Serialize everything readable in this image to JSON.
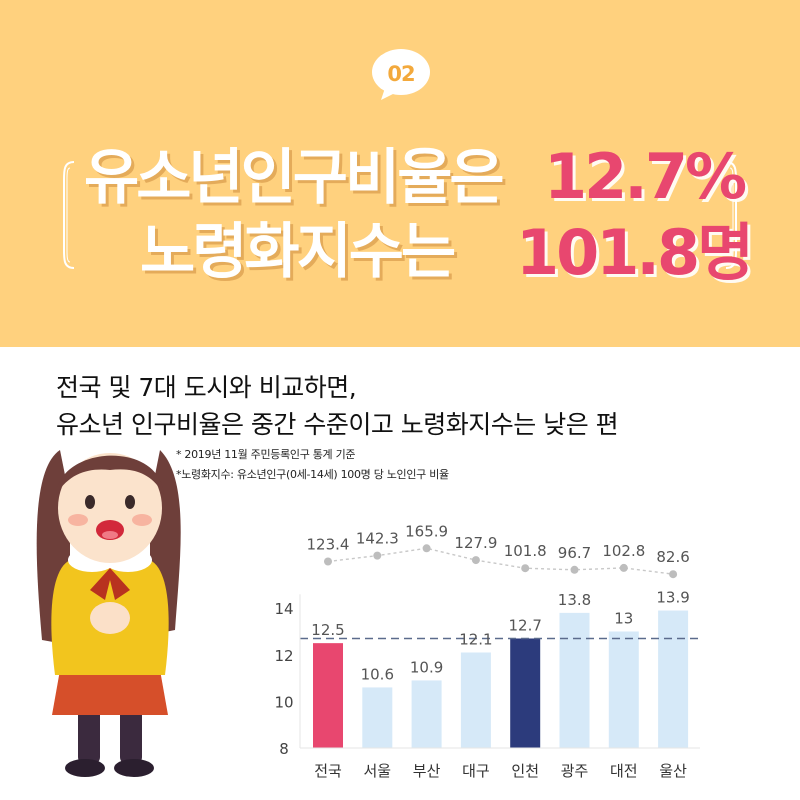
{
  "banner": {
    "badge": "02",
    "line1_text": "유소년인구비율은",
    "line1_value": "12.7%",
    "line2_text": "노령화지수는",
    "line2_value": "101.8명",
    "colors": {
      "background": "#ffd17e",
      "accent": "#e8476f",
      "badge": "#f3a93c"
    }
  },
  "subtitle": {
    "line1": "전국 및 7대 도시와 비교하면,",
    "line2": "유소년 인구비율은 중간 수준이고 노령화지수는 낮은 편"
  },
  "notes": [
    "* 2019년 11월 주민등록인구 통계 기준",
    "*노령화지수: 유소년인구(0세-14세) 100명 당 노인인구 비율"
  ],
  "illustration": {
    "icon": "girl-character-illustration"
  },
  "chart_data": {
    "type": "bar",
    "categories": [
      "전국",
      "서울",
      "부산",
      "대구",
      "인천",
      "광주",
      "대전",
      "울산"
    ],
    "bar_series": {
      "values": [
        12.5,
        10.6,
        10.9,
        12.1,
        12.7,
        13.8,
        13,
        13.9
      ]
    },
    "line_series": {
      "values": [
        123.4,
        142.3,
        165.9,
        127.9,
        101.8,
        96.7,
        102.8,
        82.6
      ]
    },
    "bar_labels": [
      "12.5",
      "10.6",
      "10.9",
      "12.1",
      "12.7",
      "13.8",
      "13",
      "13.9"
    ],
    "line_labels": [
      "123.4",
      "142.3",
      "165.9",
      "127.9",
      "101.8",
      "96.7",
      "102.8",
      "82.6"
    ],
    "yticks": [
      "8",
      "10",
      "12",
      "14"
    ],
    "ylim": [
      8,
      14.6
    ],
    "line_range": [
      80,
      170
    ],
    "reference_value": 12.7,
    "bar_colors": [
      "#e8476f",
      "#d6e9f8",
      "#d6e9f8",
      "#d6e9f8",
      "#2c3b7c",
      "#d6e9f8",
      "#d6e9f8",
      "#d6e9f8"
    ],
    "line_color": "#c8c8c8",
    "reference_color": "#5b6b8c",
    "grid": false
  }
}
